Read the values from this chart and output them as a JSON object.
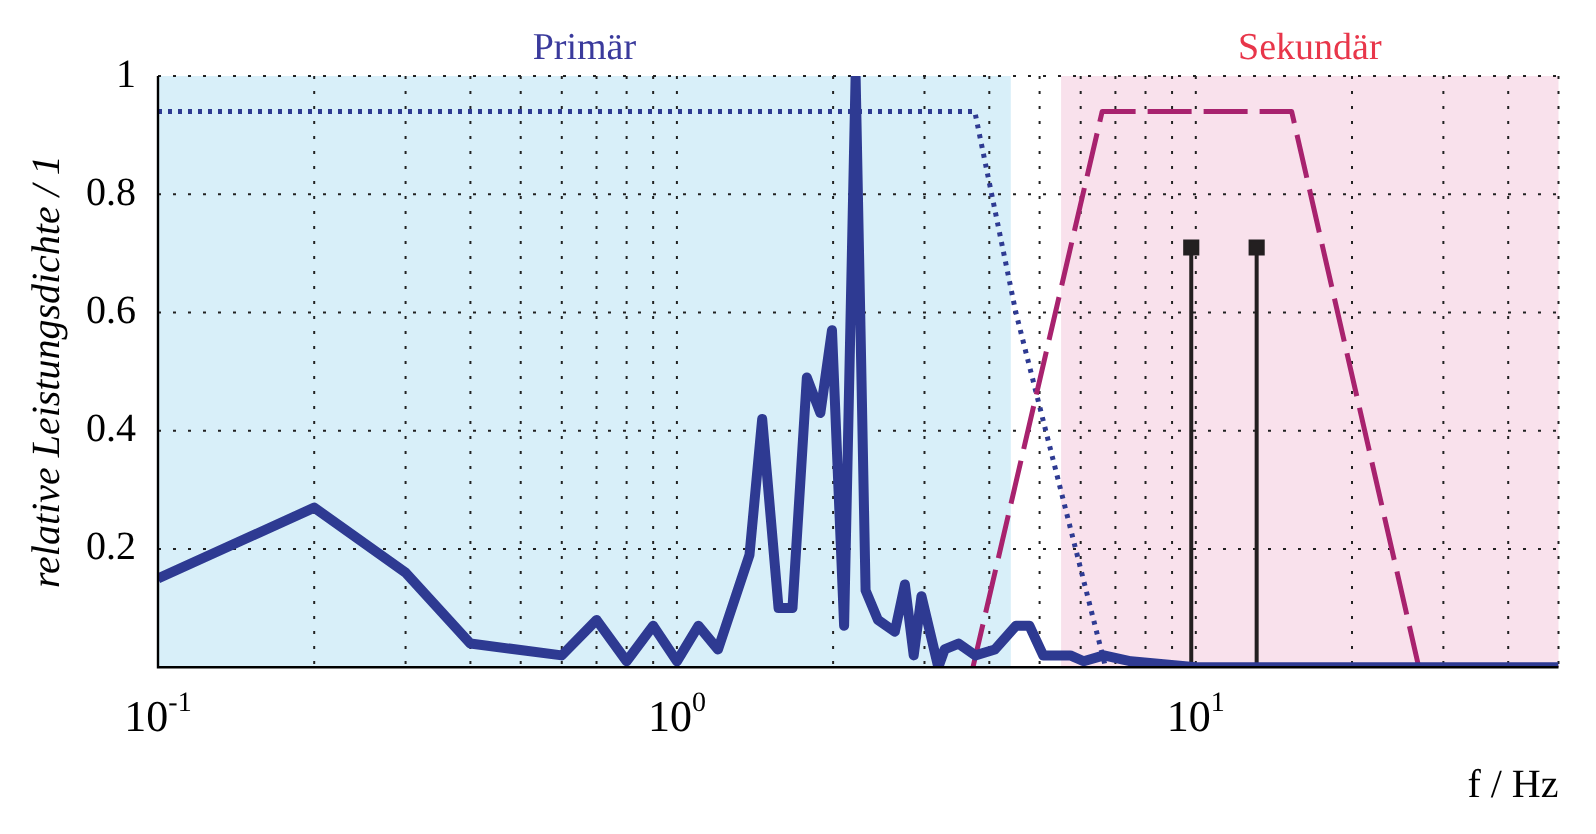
{
  "chart_data": {
    "type": "line",
    "xlabel": "f / Hz",
    "ylabel": "relative Leistungsdichte / 1",
    "log": "x",
    "grid": true,
    "marker": "none",
    "xlim": [
      0.1,
      50
    ],
    "xticks": [
      {
        "value": 0.1,
        "label": "10$^{-1}$"
      },
      {
        "value": 0.2,
        "label": null
      },
      {
        "value": 0.3,
        "label": null
      },
      {
        "value": 0.4,
        "label": null
      },
      {
        "value": 0.5,
        "label": null
      },
      {
        "value": 0.6,
        "label": null
      },
      {
        "value": 0.7,
        "label": null
      },
      {
        "value": 0.8,
        "label": null
      },
      {
        "value": 0.9,
        "label": null
      },
      {
        "value": 1,
        "label": "10$^{0}$"
      },
      {
        "value": 2,
        "label": null
      },
      {
        "value": 3,
        "label": null
      },
      {
        "value": 4,
        "label": null
      },
      {
        "value": 5,
        "label": null
      },
      {
        "value": 6,
        "label": null
      },
      {
        "value": 7,
        "label": null
      },
      {
        "value": 8,
        "label": null
      },
      {
        "value": 9,
        "label": null
      },
      {
        "value": 10,
        "label": "10$^{1}$"
      },
      {
        "value": 20,
        "label": null
      },
      {
        "value": 30,
        "label": null
      },
      {
        "value": 40,
        "label": null
      },
      {
        "value": 50,
        "label": null
      }
    ],
    "ylim": [
      0,
      1
    ],
    "yticks": [
      0.2,
      0.4,
      0.6,
      0.8,
      1
    ],
    "bands": [
      {
        "axis": "x",
        "from": 0.1,
        "to": 4.4,
        "label": "Primär",
        "color": "#d8eff9"
      },
      {
        "axis": "x",
        "from": 5.5,
        "to": 50,
        "label": "Sekundär",
        "color": "#f9e1ec"
      }
    ],
    "series": [
      {
        "line_style": "dotted",
        "color": "#2e3a92",
        "x": [
          0.1,
          3.75,
          4.5,
          6.7
        ],
        "values": [
          0.94,
          0.94,
          0.6,
          0
        ]
      },
      {
        "line_style": "dashed",
        "color": "#a8226e",
        "x": [
          3.72,
          6.6,
          15.3,
          26.9,
          50
        ],
        "values": [
          0,
          0.94,
          0.94,
          0,
          0
        ]
      },
      {
        "type": "lollipop",
        "marker": "square",
        "color": "#231f20",
        "x": [
          9.8,
          13.1
        ],
        "values": [
          0.71,
          0.71
        ]
      },
      {
        "line_style": "solid",
        "color": "#2e3a92",
        "x": [
          0.1,
          0.2,
          0.3,
          0.4,
          0.6,
          0.7,
          0.8,
          0.9,
          1.0,
          1.1,
          1.2,
          1.38,
          1.46,
          1.57,
          1.67,
          1.78,
          1.89,
          1.99,
          2.1,
          2.21,
          2.31,
          2.44,
          2.63,
          2.75,
          2.86,
          2.96,
          3.19,
          3.28,
          3.49,
          3.76,
          4.1,
          4.5,
          4.78,
          5.08,
          5.73,
          6.08,
          6.65,
          7.5,
          10,
          50
        ],
        "values": [
          0.15,
          0.27,
          0.16,
          0.04,
          0.02,
          0.08,
          0.01,
          0.07,
          0.01,
          0.07,
          0.03,
          0.19,
          0.42,
          0.1,
          0.1,
          0.49,
          0.43,
          0.57,
          0.07,
          1,
          0.13,
          0.08,
          0.06,
          0.14,
          0.02,
          0.12,
          0,
          0.03,
          0.04,
          0.02,
          0.03,
          0.07,
          0.07,
          0.02,
          0.02,
          0.01,
          0.02,
          0.01,
          0,
          0
        ]
      }
    ]
  }
}
